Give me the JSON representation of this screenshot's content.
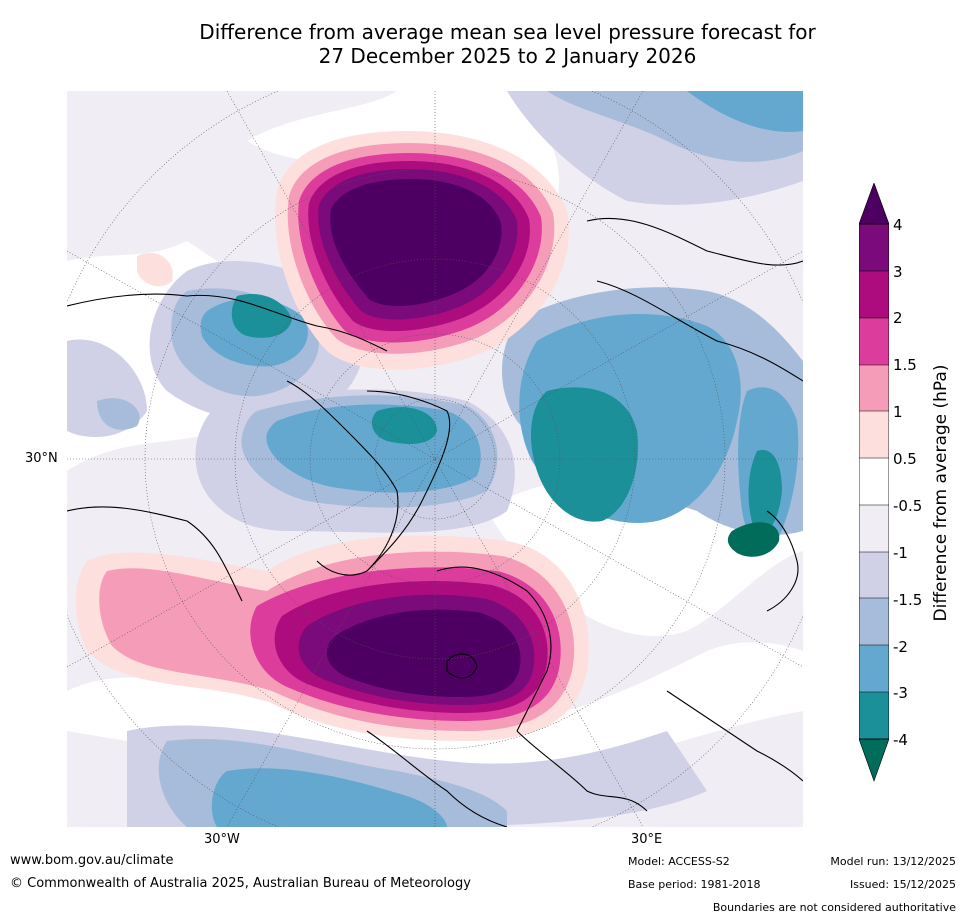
{
  "title": {
    "line1": "Difference from average mean sea level pressure forecast for",
    "line2": "27 December 2025 to 2 January 2026"
  },
  "map": {
    "projection": "polar-stereographic north",
    "lat_label": "30°N",
    "lon_labels": [
      "30°W",
      "30°E"
    ],
    "features": [
      {
        "name": "north-pacific-positive-anomaly",
        "value": "4"
      },
      {
        "name": "north-atlantic-europe-positive-anomaly",
        "value": "4"
      },
      {
        "name": "alaska-negative-anomaly",
        "value": "-3"
      },
      {
        "name": "arctic-negative-anomaly",
        "value": "-3"
      },
      {
        "name": "siberia-negative-anomaly",
        "value": "-3"
      },
      {
        "name": "north-africa-negative-anomaly",
        "value": "-2"
      }
    ]
  },
  "colorbar": {
    "label": "Difference from average (hPa)",
    "ticks": [
      "4",
      "3",
      "2",
      "1.5",
      "1",
      "0.5",
      "-0.5",
      "-1",
      "-1.5",
      "-2",
      "-3",
      "-4"
    ],
    "colors": {
      "above_4": "#4d0061",
      "3_to_4": "#7b0b7a",
      "2_to_3": "#ad0c7f",
      "1.5_to_2": "#dc3c9b",
      "1_to_1.5": "#f59db8",
      "0.5_to_1": "#fde0de",
      "neutral": "#ffffff",
      "-1_to_-0.5": "#f1edf4",
      "-1.5_to_-1": "#d0d0e6",
      "-2_to_-1.5": "#a6bcda",
      "-3_to_-2": "#64a8d0",
      "-4_to_-3": "#1c9099",
      "below_-4": "#016c59"
    }
  },
  "footer": {
    "url": "www.bom.gov.au/climate",
    "copyright": "© Commonwealth of Australia 2025, Australian Bureau of Meteorology",
    "model": "Model: ACCESS-S2",
    "base_period": "Base period: 1981-2018",
    "model_run": "Model run: 13/12/2025",
    "issued": "Issued: 15/12/2025",
    "disclaimer": "Boundaries are not considered authoritative"
  }
}
